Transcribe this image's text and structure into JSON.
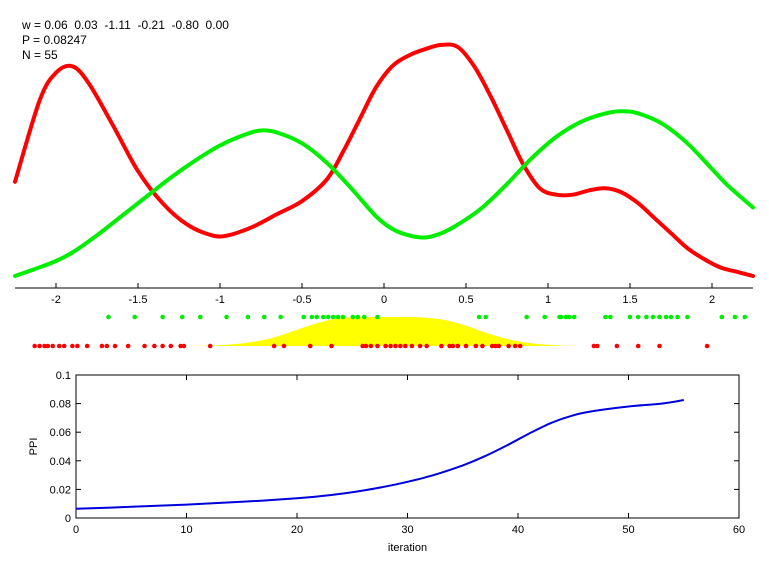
{
  "info": {
    "w_line": "w = 0.06  0.03  -1.11  -0.21  -0.80  0.00",
    "p_line": "P = 0.08247",
    "n_line": "N = 55"
  },
  "chart_data": [
    {
      "type": "line",
      "title": "",
      "xlabel": "",
      "ylabel": "",
      "xlim": [
        -2.25,
        2.25
      ],
      "x_ticks": [
        "-2",
        "-1.5",
        "-1",
        "-0.5",
        "0",
        "0.5",
        "1",
        "1.5",
        "2"
      ],
      "x_tick_values": [
        -2,
        -1.5,
        -1,
        -0.5,
        0,
        0.5,
        1,
        1.5,
        2
      ],
      "show_y_axis": false,
      "colors": {
        "red": "#ff0000",
        "green": "#00ee00"
      },
      "series": [
        {
          "color": "#ff0000",
          "x": [
            -2.25,
            -2.1,
            -2.0,
            -1.9,
            -1.8,
            -1.65,
            -1.5,
            -1.35,
            -1.2,
            -1.05,
            -0.95,
            -0.8,
            -0.65,
            -0.5,
            -0.35,
            -0.25,
            -0.15,
            -0.05,
            0.05,
            0.15,
            0.25,
            0.35,
            0.45,
            0.55,
            0.65,
            0.75,
            0.85,
            0.95,
            1.05,
            1.15,
            1.25,
            1.35,
            1.45,
            1.55,
            1.65,
            1.75,
            1.85,
            1.95,
            2.05,
            2.15,
            2.25
          ],
          "y": [
            0.44,
            0.82,
            0.95,
            0.98,
            0.9,
            0.7,
            0.49,
            0.34,
            0.24,
            0.19,
            0.19,
            0.23,
            0.29,
            0.35,
            0.45,
            0.58,
            0.73,
            0.88,
            0.98,
            1.03,
            1.06,
            1.08,
            1.07,
            0.98,
            0.84,
            0.68,
            0.52,
            0.41,
            0.38,
            0.38,
            0.4,
            0.41,
            0.39,
            0.34,
            0.27,
            0.2,
            0.13,
            0.08,
            0.04,
            0.02,
            0.0
          ]
        },
        {
          "color": "#00ee00",
          "x": [
            -2.25,
            -2.1,
            -2.0,
            -1.9,
            -1.75,
            -1.6,
            -1.45,
            -1.3,
            -1.15,
            -1.0,
            -0.85,
            -0.75,
            -0.65,
            -0.5,
            -0.35,
            -0.2,
            -0.05,
            0.05,
            0.15,
            0.25,
            0.35,
            0.45,
            0.6,
            0.75,
            0.9,
            1.05,
            1.2,
            1.35,
            1.45,
            1.55,
            1.7,
            1.85,
            2.0,
            2.1,
            2.25
          ],
          "y": [
            0.0,
            0.04,
            0.07,
            0.11,
            0.19,
            0.28,
            0.37,
            0.46,
            0.54,
            0.61,
            0.66,
            0.68,
            0.67,
            0.62,
            0.53,
            0.41,
            0.28,
            0.22,
            0.19,
            0.18,
            0.2,
            0.24,
            0.32,
            0.43,
            0.55,
            0.65,
            0.72,
            0.76,
            0.77,
            0.76,
            0.71,
            0.62,
            0.5,
            0.42,
            0.32
          ]
        }
      ]
    },
    {
      "type": "scatter",
      "title": "",
      "xlim": [
        -2.25,
        2.25
      ],
      "series": [
        {
          "color": "#00ee00",
          "x": [
            -1.68,
            -1.52,
            -1.35,
            -1.23,
            -1.12,
            -0.96,
            -0.83,
            -0.73,
            -0.63,
            -0.49,
            -0.44,
            -0.41,
            -0.37,
            -0.34,
            -0.31,
            -0.28,
            -0.25,
            -0.19,
            -0.16,
            -0.12,
            -0.04,
            0.58,
            0.62,
            0.87,
            0.98,
            1.07,
            1.08,
            1.11,
            1.13,
            1.16,
            1.35,
            1.38,
            1.5,
            1.55,
            1.6,
            1.64,
            1.68,
            1.72,
            1.75,
            1.79,
            1.85,
            2.06,
            2.14,
            2.2
          ]
        },
        {
          "color": "#ff0000",
          "x": [
            -2.13,
            -2.1,
            -2.07,
            -2.05,
            -2.02,
            -1.98,
            -1.95,
            -1.9,
            -1.87,
            -1.81,
            -1.72,
            -1.69,
            -1.64,
            -1.56,
            -1.46,
            -1.4,
            -1.35,
            -1.3,
            -1.24,
            -1.22,
            -1.06,
            -0.67,
            -0.61,
            -0.45,
            -0.32,
            -0.13,
            -0.11,
            -0.08,
            -0.04,
            0.01,
            0.04,
            0.07,
            0.1,
            0.13,
            0.17,
            0.22,
            0.26,
            0.35,
            0.4,
            0.42,
            0.45,
            0.5,
            0.56,
            0.6,
            0.66,
            0.68,
            0.7,
            0.76,
            0.8,
            0.83,
            1.28,
            1.3,
            1.42,
            1.55,
            1.68,
            1.97
          ]
        }
      ],
      "density": {
        "color": "#ffff00",
        "x": [
          -1.25,
          -1.1,
          -1.0,
          -0.9,
          -0.8,
          -0.7,
          -0.6,
          -0.5,
          -0.4,
          -0.3,
          -0.2,
          -0.1,
          0.0,
          0.1,
          0.2,
          0.3,
          0.4,
          0.5,
          0.6,
          0.7,
          0.8,
          0.9,
          1.0,
          1.1,
          1.25
        ],
        "y": [
          0.0,
          0.01,
          0.03,
          0.07,
          0.14,
          0.25,
          0.42,
          0.62,
          0.8,
          0.93,
          0.99,
          1.0,
          1.0,
          1.0,
          0.99,
          0.95,
          0.86,
          0.7,
          0.5,
          0.32,
          0.18,
          0.09,
          0.04,
          0.01,
          0.0
        ]
      }
    },
    {
      "type": "line",
      "title": "",
      "xlabel": "iteration",
      "ylabel": "PPI",
      "xlim": [
        0,
        60
      ],
      "ylim": [
        0,
        0.1
      ],
      "x_ticks": [
        "0",
        "10",
        "20",
        "30",
        "40",
        "50",
        "60"
      ],
      "x_tick_values": [
        0,
        10,
        20,
        30,
        40,
        50,
        60
      ],
      "y_ticks": [
        "0",
        "0.02",
        "0.04",
        "0.06",
        "0.08",
        "0.1"
      ],
      "y_tick_values": [
        0,
        0.02,
        0.04,
        0.06,
        0.08,
        0.1
      ],
      "series": [
        {
          "color": "#0000dd",
          "x": [
            0,
            5,
            10,
            15,
            20,
            23,
            26,
            29,
            32,
            35,
            37,
            39,
            41,
            43,
            45,
            47,
            50,
            53,
            55
          ],
          "y": [
            0.0064,
            0.0078,
            0.0094,
            0.0113,
            0.0138,
            0.016,
            0.0192,
            0.0236,
            0.0292,
            0.0368,
            0.0432,
            0.0508,
            0.059,
            0.0665,
            0.0718,
            0.075,
            0.078,
            0.08,
            0.0825
          ]
        }
      ]
    }
  ]
}
